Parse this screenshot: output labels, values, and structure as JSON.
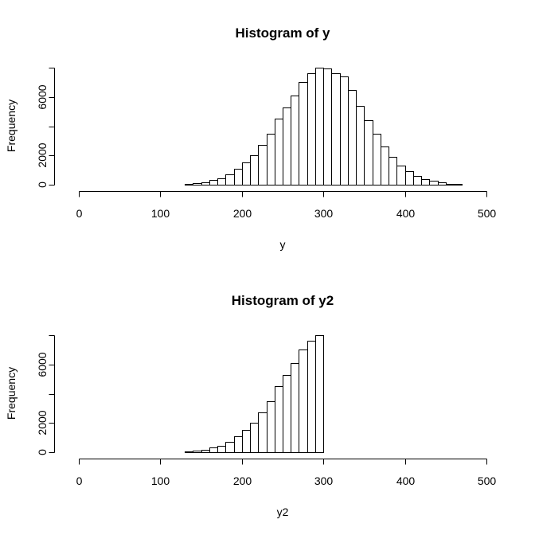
{
  "chart_data": [
    {
      "type": "bar",
      "title": "Histogram of y",
      "xlabel": "y",
      "ylabel": "Frequency",
      "xlim": [
        0,
        500
      ],
      "ylim": [
        0,
        8000
      ],
      "x_ticks": [
        0,
        100,
        200,
        300,
        400,
        500
      ],
      "y_ticks": [
        0,
        2000,
        6000
      ],
      "bin_width": 10,
      "bins_start": [
        0,
        10,
        20,
        30,
        40,
        50,
        60,
        70,
        80,
        90,
        100,
        110,
        120,
        130,
        140,
        150,
        160,
        170,
        180,
        190,
        200,
        210,
        220,
        230,
        240,
        250,
        260,
        270,
        280,
        290,
        300,
        310,
        320,
        330,
        340,
        350,
        360,
        370,
        380,
        390,
        400,
        410,
        420,
        430,
        440,
        450,
        460,
        470,
        480,
        490
      ],
      "values": [
        0,
        0,
        0,
        0,
        0,
        0,
        0,
        0,
        0,
        0,
        0,
        5,
        20,
        50,
        100,
        180,
        300,
        450,
        700,
        1100,
        1500,
        2000,
        2700,
        3500,
        4500,
        5300,
        6100,
        7000,
        7600,
        8000,
        7950,
        7600,
        7400,
        6500,
        5400,
        4400,
        3500,
        2600,
        1900,
        1300,
        900,
        600,
        400,
        250,
        150,
        80,
        40,
        20,
        10,
        0
      ]
    },
    {
      "type": "bar",
      "title": "Histogram of y2",
      "xlabel": "y2",
      "ylabel": "Frequency",
      "xlim": [
        0,
        500
      ],
      "ylim": [
        0,
        8000
      ],
      "x_ticks": [
        0,
        100,
        200,
        300,
        400,
        500
      ],
      "y_ticks": [
        0,
        2000,
        6000
      ],
      "bin_width": 10,
      "bins_start": [
        0,
        10,
        20,
        30,
        40,
        50,
        60,
        70,
        80,
        90,
        100,
        110,
        120,
        130,
        140,
        150,
        160,
        170,
        180,
        190,
        200,
        210,
        220,
        230,
        240,
        250,
        260,
        270,
        280,
        290,
        300,
        310,
        320,
        330,
        340,
        350,
        360,
        370,
        380,
        390,
        400,
        410,
        420,
        430,
        440,
        450,
        460,
        470,
        480,
        490
      ],
      "values": [
        0,
        0,
        0,
        0,
        0,
        0,
        0,
        0,
        0,
        0,
        0,
        5,
        20,
        50,
        100,
        180,
        300,
        450,
        700,
        1100,
        1500,
        2000,
        2700,
        3500,
        4500,
        5300,
        6100,
        7000,
        7600,
        8000,
        0,
        0,
        0,
        0,
        0,
        0,
        0,
        0,
        0,
        0,
        0,
        0,
        0,
        0,
        0,
        0,
        0,
        0,
        0,
        0
      ]
    }
  ]
}
